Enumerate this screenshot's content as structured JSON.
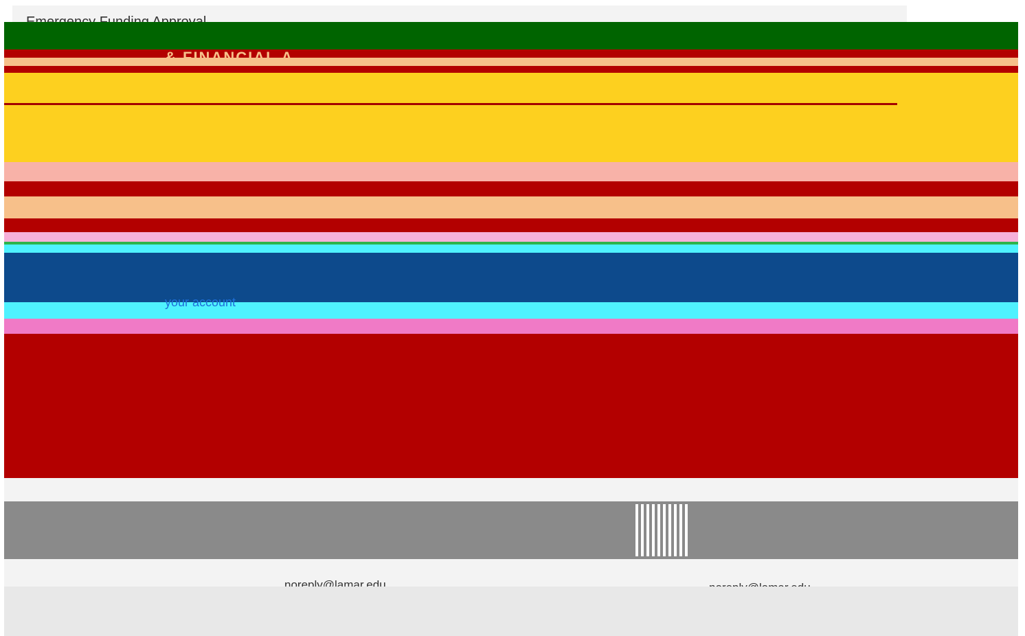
{
  "email": {
    "subject": "Emergency Funding Approval...",
    "banner_title": "& FINANCIAL A",
    "account_text": "your account",
    "sender_left": "noreply@lamar.edu",
    "sender_right": "noreply@lamar.edu"
  },
  "colors": {
    "header_green": "#006400",
    "banner_red": "#b30000",
    "banner_yellow": "#fdd01f",
    "navy": "#0d4a8c",
    "link_blue": "#1e6fd9",
    "footer_grey": "#8a8a8a"
  }
}
